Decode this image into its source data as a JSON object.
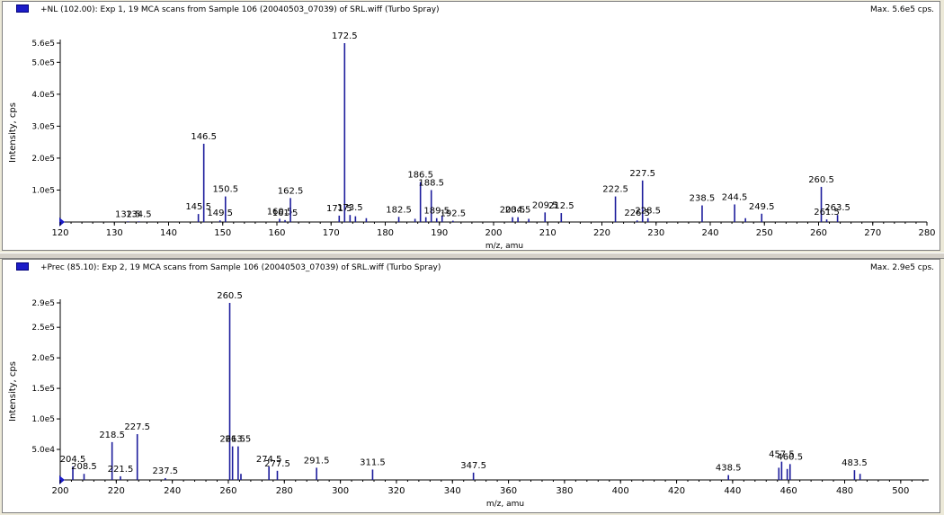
{
  "panes": [
    {
      "title": "+NL (102.00): Exp 1, 19 MCA scans from Sample 106 (20040503_07039) of SRL.wiff (Turbo Spray)",
      "max_label": "Max. 5.6e5 cps."
    },
    {
      "title": "+Prec (85.10): Exp 2, 19 MCA scans from Sample 106 (20040503_07039) of SRL.wiff (Turbo Spray)",
      "max_label": "Max. 2.9e5 cps."
    }
  ],
  "colors": {
    "line": "#1c1c9c",
    "axis": "#000000",
    "accent": "#1c1cc8"
  },
  "chart_data": [
    {
      "type": "bar",
      "xlabel": "m/z, amu",
      "ylabel": "Intensity, cps",
      "xlim": [
        120,
        280
      ],
      "ylim": [
        0,
        560000
      ],
      "xticks": [
        "120",
        "130",
        "140",
        "150",
        "160",
        "170",
        "180",
        "190",
        "200",
        "210",
        "220",
        "230",
        "240",
        "250",
        "260",
        "270",
        "280"
      ],
      "yticks": [
        {
          "v": 100000,
          "label": "1.0e5"
        },
        {
          "v": 200000,
          "label": "2.0e5"
        },
        {
          "v": 300000,
          "label": "3.0e5"
        },
        {
          "v": 400000,
          "label": "4.0e5"
        },
        {
          "v": 500000,
          "label": "5.0e5"
        },
        {
          "v": 560000,
          "label": "5.6e5"
        }
      ],
      "peaks": [
        {
          "x": 132.5,
          "y": 2000,
          "label": "132.5"
        },
        {
          "x": 134.5,
          "y": 2000,
          "label": "134.5"
        },
        {
          "x": 145.5,
          "y": 25000,
          "label": "145.5"
        },
        {
          "x": 146.5,
          "y": 245000,
          "label": "146.5"
        },
        {
          "x": 149.5,
          "y": 5000,
          "label": "149.5"
        },
        {
          "x": 150.5,
          "y": 80000,
          "label": "150.5"
        },
        {
          "x": 160.5,
          "y": 10000,
          "label": "160.5"
        },
        {
          "x": 161.5,
          "y": 6000,
          "label": "161.5"
        },
        {
          "x": 162.5,
          "y": 75000,
          "label": "162.5"
        },
        {
          "x": 171.5,
          "y": 20000,
          "label": "171.5"
        },
        {
          "x": 172.5,
          "y": 560000,
          "label": "172.5"
        },
        {
          "x": 173.5,
          "y": 22000,
          "label": "173.5"
        },
        {
          "x": 174.5,
          "y": 18000,
          "label": ""
        },
        {
          "x": 176.5,
          "y": 12000,
          "label": ""
        },
        {
          "x": 182.5,
          "y": 16000,
          "label": "182.5"
        },
        {
          "x": 185.5,
          "y": 10000,
          "label": ""
        },
        {
          "x": 186.5,
          "y": 125000,
          "label": "186.5"
        },
        {
          "x": 187.5,
          "y": 15000,
          "label": ""
        },
        {
          "x": 188.5,
          "y": 100000,
          "label": "188.5"
        },
        {
          "x": 189.5,
          "y": 12000,
          "label": "189.5"
        },
        {
          "x": 190.5,
          "y": 20000,
          "label": ""
        },
        {
          "x": 192.5,
          "y": 4000,
          "label": "192.5"
        },
        {
          "x": 203.5,
          "y": 15000,
          "label": "203.5"
        },
        {
          "x": 204.5,
          "y": 15000,
          "label": "204.5"
        },
        {
          "x": 206.5,
          "y": 10000,
          "label": ""
        },
        {
          "x": 209.5,
          "y": 30000,
          "label": "209.5"
        },
        {
          "x": 212.5,
          "y": 28000,
          "label": "212.5"
        },
        {
          "x": 222.5,
          "y": 80000,
          "label": "222.5"
        },
        {
          "x": 226.5,
          "y": 5000,
          "label": "226.5"
        },
        {
          "x": 227.5,
          "y": 130000,
          "label": "227.5"
        },
        {
          "x": 228.5,
          "y": 12000,
          "label": "228.5"
        },
        {
          "x": 238.5,
          "y": 52000,
          "label": "238.5"
        },
        {
          "x": 244.5,
          "y": 55000,
          "label": "244.5"
        },
        {
          "x": 246.5,
          "y": 12000,
          "label": ""
        },
        {
          "x": 249.5,
          "y": 26000,
          "label": "249.5"
        },
        {
          "x": 260.5,
          "y": 110000,
          "label": "260.5"
        },
        {
          "x": 261.5,
          "y": 8000,
          "label": "261.5"
        },
        {
          "x": 263.5,
          "y": 22000,
          "label": "263.5"
        }
      ]
    },
    {
      "type": "bar",
      "xlabel": "m/z, amu",
      "ylabel": "Intensity, cps",
      "xlim": [
        200,
        510
      ],
      "ylim": [
        0,
        290000
      ],
      "xticks": [
        "200",
        "220",
        "240",
        "260",
        "280",
        "300",
        "320",
        "340",
        "360",
        "380",
        "400",
        "420",
        "440",
        "460",
        "480",
        "500"
      ],
      "yticks": [
        {
          "v": 50000,
          "label": "5.0e4"
        },
        {
          "v": 100000,
          "label": "1.0e5"
        },
        {
          "v": 150000,
          "label": "1.5e5"
        },
        {
          "v": 200000,
          "label": "2.0e5"
        },
        {
          "v": 250000,
          "label": "2.5e5"
        },
        {
          "v": 290000,
          "label": "2.9e5"
        }
      ],
      "peaks": [
        {
          "x": 204.5,
          "y": 22000,
          "label": "204.5"
        },
        {
          "x": 208.5,
          "y": 10000,
          "label": "208.5"
        },
        {
          "x": 218.5,
          "y": 62000,
          "label": "218.5"
        },
        {
          "x": 221.5,
          "y": 6000,
          "label": "221.5"
        },
        {
          "x": 227.5,
          "y": 75000,
          "label": "227.5"
        },
        {
          "x": 237.5,
          "y": 3000,
          "label": "237.5"
        },
        {
          "x": 260.5,
          "y": 290000,
          "label": "260.5"
        },
        {
          "x": 261.5,
          "y": 55000,
          "label": "261.5"
        },
        {
          "x": 263.5,
          "y": 55000,
          "label": "263.5"
        },
        {
          "x": 264.5,
          "y": 10000,
          "label": ""
        },
        {
          "x": 274.5,
          "y": 22000,
          "label": "274.5"
        },
        {
          "x": 277.5,
          "y": 15000,
          "label": "277.5"
        },
        {
          "x": 291.5,
          "y": 20000,
          "label": "291.5"
        },
        {
          "x": 311.5,
          "y": 17000,
          "label": "311.5"
        },
        {
          "x": 347.5,
          "y": 12000,
          "label": "347.5"
        },
        {
          "x": 438.5,
          "y": 8000,
          "label": "438.5"
        },
        {
          "x": 456.5,
          "y": 20000,
          "label": ""
        },
        {
          "x": 457.5,
          "y": 30000,
          "label": "457.5"
        },
        {
          "x": 459.5,
          "y": 18000,
          "label": ""
        },
        {
          "x": 460.5,
          "y": 26000,
          "label": "460.5"
        },
        {
          "x": 483.5,
          "y": 16000,
          "label": "483.5"
        },
        {
          "x": 485.5,
          "y": 10000,
          "label": ""
        }
      ]
    }
  ]
}
